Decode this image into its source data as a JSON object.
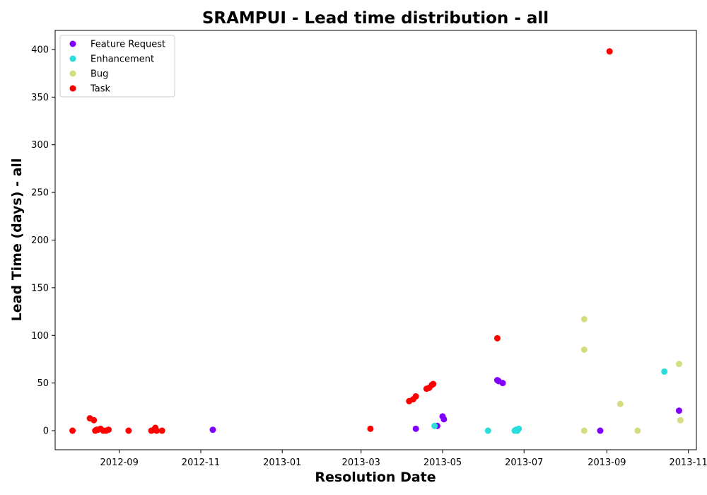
{
  "chart_data": {
    "type": "scatter",
    "title": "SRAMPUI - Lead time distribution - all",
    "xlabel": "Resolution Date",
    "ylabel": "Lead Time (days) - all",
    "x_type": "date",
    "xlim": [
      "2012-07-15",
      "2013-11-07"
    ],
    "ylim": [
      -20,
      420
    ],
    "x_ticks": [
      "2012-09-01",
      "2012-11-01",
      "2013-01-01",
      "2013-03-01",
      "2013-05-01",
      "2013-07-01",
      "2013-09-01",
      "2013-11-01"
    ],
    "x_tick_labels": [
      "2012-09",
      "2012-11",
      "2013-01",
      "2013-03",
      "2013-05",
      "2013-07",
      "2013-09",
      "2013-11"
    ],
    "y_ticks": [
      0,
      50,
      100,
      150,
      200,
      250,
      300,
      350,
      400
    ],
    "grid": false,
    "legend_position": "top-left",
    "series": [
      {
        "name": "Feature Request",
        "color": "#8000ff",
        "points": [
          [
            "2012-11-10",
            1
          ],
          [
            "2013-04-11",
            2
          ],
          [
            "2013-04-27",
            5
          ],
          [
            "2013-05-01",
            15
          ],
          [
            "2013-05-02",
            12
          ],
          [
            "2013-06-11",
            53
          ],
          [
            "2013-06-12",
            52
          ],
          [
            "2013-06-15",
            50
          ],
          [
            "2013-08-27",
            0
          ],
          [
            "2013-10-25",
            21
          ]
        ]
      },
      {
        "name": "Enhancement",
        "color": "#2adddd",
        "points": [
          [
            "2013-04-25",
            5
          ],
          [
            "2013-06-04",
            0
          ],
          [
            "2013-06-24",
            0
          ],
          [
            "2013-06-25",
            1
          ],
          [
            "2013-06-26",
            0
          ],
          [
            "2013-06-27",
            2
          ],
          [
            "2013-10-14",
            62
          ]
        ]
      },
      {
        "name": "Bug",
        "color": "#d4dd80",
        "points": [
          [
            "2013-08-15",
            117
          ],
          [
            "2013-08-15",
            85
          ],
          [
            "2013-08-15",
            0
          ],
          [
            "2013-09-11",
            28
          ],
          [
            "2013-09-24",
            0
          ],
          [
            "2013-10-25",
            70
          ],
          [
            "2013-10-26",
            11
          ]
        ]
      },
      {
        "name": "Task",
        "color": "#ff0000",
        "points": [
          [
            "2012-07-28",
            0
          ],
          [
            "2012-08-10",
            13
          ],
          [
            "2012-08-13",
            11
          ],
          [
            "2012-08-14",
            0
          ],
          [
            "2012-08-15",
            1
          ],
          [
            "2012-08-16",
            1
          ],
          [
            "2012-08-18",
            2
          ],
          [
            "2012-08-20",
            0
          ],
          [
            "2012-08-22",
            0
          ],
          [
            "2012-08-24",
            1
          ],
          [
            "2012-09-08",
            0
          ],
          [
            "2012-09-25",
            0
          ],
          [
            "2012-09-27",
            1
          ],
          [
            "2012-09-28",
            3
          ],
          [
            "2012-09-29",
            0
          ],
          [
            "2012-10-03",
            0
          ],
          [
            "2013-03-08",
            2
          ],
          [
            "2013-04-06",
            31
          ],
          [
            "2013-04-09",
            33
          ],
          [
            "2013-04-11",
            36
          ],
          [
            "2013-04-19",
            44
          ],
          [
            "2013-04-21",
            45
          ],
          [
            "2013-04-23",
            48
          ],
          [
            "2013-04-24",
            49
          ],
          [
            "2013-06-11",
            97
          ],
          [
            "2013-09-03",
            398
          ]
        ]
      }
    ]
  }
}
